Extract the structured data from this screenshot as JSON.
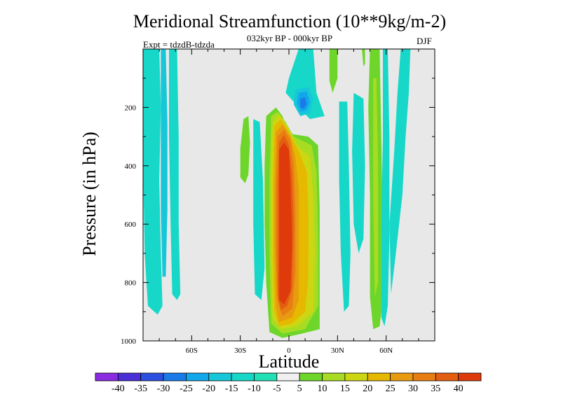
{
  "chart_data": {
    "type": "heatmap",
    "title": "Meridional Streamfunction (10**9kg/m-2)",
    "subtitle": "032kyr BP - 000kyr BP",
    "experiment": "Expt = tdzdB-tdzda",
    "season": "DJF",
    "xlabel": "Latitude",
    "ylabel": "Pressure (in hPa)",
    "xlim": [
      -90,
      90
    ],
    "ylim": [
      1000,
      0
    ],
    "x_ticks": [
      {
        "value": -60,
        "label": "60S"
      },
      {
        "value": -30,
        "label": "30S"
      },
      {
        "value": 0,
        "label": "0"
      },
      {
        "value": 30,
        "label": "30N"
      },
      {
        "value": 60,
        "label": "60N"
      }
    ],
    "y_ticks": [
      {
        "value": 200,
        "label": "200"
      },
      {
        "value": 400,
        "label": "400"
      },
      {
        "value": 600,
        "label": "600"
      },
      {
        "value": 800,
        "label": "800"
      },
      {
        "value": 1000,
        "label": "1000"
      }
    ],
    "background_color": "#e8e8e8",
    "colorbar": {
      "colors": [
        "#8b2be2",
        "#4b2fd6",
        "#2b4fe0",
        "#1a7ae8",
        "#12a7ea",
        "#16c7d9",
        "#17d8c8",
        "#20e0b4",
        "#f0f0f0",
        "#6ed62a",
        "#a8dc22",
        "#cdd612",
        "#e6b800",
        "#e89a10",
        "#e87d12",
        "#e45e10",
        "#de3a0c"
      ],
      "labels": [
        "-40",
        "-35",
        "-30",
        "-25",
        "-20",
        "-15",
        "-10",
        "-5",
        "5",
        "10",
        "15",
        "20",
        "25",
        "30",
        "35",
        "40"
      ]
    },
    "contours": [
      {
        "name": "sh-band-a",
        "level": -5,
        "color": "#17d8c8",
        "points": [
          [
            -90,
            0
          ],
          [
            -80,
            0
          ],
          [
            -79,
            200
          ],
          [
            -80,
            450
          ],
          [
            -79,
            700
          ],
          [
            -78,
            880
          ],
          [
            -81,
            910
          ],
          [
            -87,
            880
          ],
          [
            -89,
            700
          ],
          [
            -90,
            400
          ]
        ]
      },
      {
        "name": "sh-band-b",
        "level": -5,
        "color": "#17d8c8",
        "points": [
          [
            -74,
            0
          ],
          [
            -69,
            0
          ],
          [
            -68,
            300
          ],
          [
            -68,
            600
          ],
          [
            -67,
            840
          ],
          [
            -69,
            860
          ],
          [
            -72,
            840
          ],
          [
            -73,
            600
          ],
          [
            -74,
            300
          ]
        ]
      },
      {
        "name": "sh-band-c",
        "level": -10,
        "color": "#16c7d9",
        "points": [
          [
            -79,
            0
          ],
          [
            -76,
            0
          ],
          [
            -75,
            250
          ],
          [
            -75,
            550
          ],
          [
            -76,
            780
          ],
          [
            -78,
            780
          ],
          [
            -79,
            550
          ]
        ]
      },
      {
        "name": "green-sliver-s",
        "level": 5,
        "color": "#6ed62a",
        "points": [
          [
            -28,
            240
          ],
          [
            -25,
            230
          ],
          [
            -24,
            320
          ],
          [
            -25,
            430
          ],
          [
            -27,
            460
          ],
          [
            -30,
            440
          ],
          [
            -30,
            340
          ]
        ]
      },
      {
        "name": "cyan-sliver-s",
        "level": -5,
        "color": "#17d8c8",
        "points": [
          [
            -22,
            240
          ],
          [
            -18,
            250
          ],
          [
            -16,
            450
          ],
          [
            -15,
            750
          ],
          [
            -17,
            860
          ],
          [
            -21,
            840
          ],
          [
            -22,
            600
          ],
          [
            -22,
            400
          ]
        ]
      },
      {
        "name": "cyan-cap",
        "level": -5,
        "color": "#17d8c8",
        "points": [
          [
            6,
            0
          ],
          [
            15,
            0
          ],
          [
            17,
            150
          ],
          [
            22,
            230
          ],
          [
            13,
            240
          ],
          [
            6,
            200
          ],
          [
            -2,
            150
          ],
          [
            0,
            100
          ]
        ]
      },
      {
        "name": "cyan-core-1",
        "level": -10,
        "color": "#16c7d9",
        "points": [
          [
            4,
            140
          ],
          [
            12,
            130
          ],
          [
            15,
            170
          ],
          [
            13,
            220
          ],
          [
            7,
            230
          ],
          [
            3,
            190
          ]
        ]
      },
      {
        "name": "cyan-core-2",
        "level": -15,
        "color": "#12a7ea",
        "points": [
          [
            6,
            150
          ],
          [
            11,
            145
          ],
          [
            13,
            180
          ],
          [
            11,
            210
          ],
          [
            7,
            215
          ],
          [
            5,
            185
          ]
        ]
      },
      {
        "name": "cyan-core-3",
        "level": -20,
        "color": "#1a7ae8",
        "points": [
          [
            7,
            170
          ],
          [
            10,
            165
          ],
          [
            11,
            190
          ],
          [
            9,
            205
          ],
          [
            7,
            200
          ]
        ]
      },
      {
        "name": "green-cap-n",
        "level": 5,
        "color": "#6ed62a",
        "points": [
          [
            25,
            0
          ],
          [
            30,
            0
          ],
          [
            30,
            100
          ],
          [
            27,
            150
          ],
          [
            25,
            110
          ]
        ]
      },
      {
        "name": "cyan-sliver-n1",
        "level": -5,
        "color": "#17d8c8",
        "points": [
          [
            31,
            180
          ],
          [
            36,
            180
          ],
          [
            37,
            400
          ],
          [
            38,
            700
          ],
          [
            37,
            880
          ],
          [
            34,
            900
          ],
          [
            32,
            700
          ],
          [
            31,
            450
          ]
        ]
      },
      {
        "name": "cyan-sliver-n2",
        "level": -5,
        "color": "#17d8c8",
        "points": [
          [
            40,
            150
          ],
          [
            46,
            170
          ],
          [
            47,
            400
          ],
          [
            46,
            650
          ],
          [
            43,
            700
          ],
          [
            40,
            600
          ],
          [
            39,
            350
          ]
        ]
      },
      {
        "name": "green-n1",
        "level": 5,
        "color": "#6ed62a",
        "points": [
          [
            45,
            0
          ],
          [
            47,
            0
          ],
          [
            47,
            50
          ],
          [
            46,
            60
          ]
        ]
      },
      {
        "name": "green-n2",
        "level": 5,
        "color": "#6ed62a",
        "points": [
          [
            50,
            0
          ],
          [
            56,
            0
          ],
          [
            57,
            300
          ],
          [
            58,
            600
          ],
          [
            57,
            900
          ],
          [
            56,
            950
          ],
          [
            52,
            960
          ],
          [
            50,
            850
          ],
          [
            50,
            500
          ],
          [
            49,
            200
          ]
        ]
      },
      {
        "name": "green-n2-inner",
        "level": 10,
        "color": "#a8dc22",
        "points": [
          [
            52,
            100
          ],
          [
            54,
            100
          ],
          [
            55,
            400
          ],
          [
            55,
            800
          ],
          [
            53,
            850
          ],
          [
            52,
            500
          ]
        ]
      },
      {
        "name": "cyan-n3",
        "level": -5,
        "color": "#17d8c8",
        "points": [
          [
            58,
            0
          ],
          [
            61,
            0
          ],
          [
            62,
            300
          ],
          [
            62,
            650
          ],
          [
            61,
            880
          ],
          [
            59,
            950
          ],
          [
            57,
            920
          ],
          [
            57,
            600
          ],
          [
            58,
            300
          ]
        ]
      },
      {
        "name": "cyan-n4",
        "level": -5,
        "color": "#17d8c8",
        "points": [
          [
            69,
            0
          ],
          [
            75,
            0
          ],
          [
            74,
            150
          ],
          [
            72,
            300
          ],
          [
            70,
            500
          ],
          [
            66,
            700
          ],
          [
            63,
            840
          ],
          [
            62,
            600
          ],
          [
            65,
            350
          ],
          [
            67,
            150
          ]
        ]
      },
      {
        "name": "tropical-cell",
        "level": 5,
        "color": "#6ed62a",
        "points": [
          [
            -14,
            230
          ],
          [
            -8,
            200
          ],
          [
            -4,
            230
          ],
          [
            0,
            290
          ],
          [
            12,
            300
          ],
          [
            18,
            330
          ],
          [
            19,
            550
          ],
          [
            19,
            780
          ],
          [
            19,
            960
          ],
          [
            8,
            975
          ],
          [
            -4,
            990
          ],
          [
            -12,
            970
          ],
          [
            -14,
            800
          ],
          [
            -15,
            600
          ],
          [
            -15,
            400
          ]
        ]
      },
      {
        "name": "tropical-10",
        "level": 10,
        "color": "#a8dc22",
        "points": [
          [
            -11,
            230
          ],
          [
            -7,
            215
          ],
          [
            -2,
            250
          ],
          [
            3,
            300
          ],
          [
            14,
            330
          ],
          [
            17,
            420
          ],
          [
            18,
            650
          ],
          [
            18,
            880
          ],
          [
            10,
            960
          ],
          [
            -4,
            975
          ],
          [
            -11,
            940
          ],
          [
            -12,
            700
          ],
          [
            -12,
            450
          ]
        ]
      },
      {
        "name": "tropical-15",
        "level": 15,
        "color": "#cdd612",
        "points": [
          [
            -10,
            250
          ],
          [
            -6,
            225
          ],
          [
            -1,
            265
          ],
          [
            5,
            330
          ],
          [
            13,
            370
          ],
          [
            15,
            500
          ],
          [
            16,
            700
          ],
          [
            15,
            900
          ],
          [
            5,
            950
          ],
          [
            -5,
            960
          ],
          [
            -10,
            920
          ],
          [
            -11,
            700
          ],
          [
            -11,
            450
          ]
        ]
      },
      {
        "name": "tropical-20",
        "level": 20,
        "color": "#e6b800",
        "points": [
          [
            -9,
            265
          ],
          [
            -5,
            240
          ],
          [
            0,
            285
          ],
          [
            6,
            350
          ],
          [
            11,
            420
          ],
          [
            12,
            560
          ],
          [
            12,
            780
          ],
          [
            10,
            900
          ],
          [
            2,
            940
          ],
          [
            -6,
            950
          ],
          [
            -9,
            900
          ],
          [
            -10,
            700
          ],
          [
            -10,
            460
          ]
        ]
      },
      {
        "name": "tropical-25",
        "level": 25,
        "color": "#e89a10",
        "points": [
          [
            -8,
            285
          ],
          [
            -4,
            258
          ],
          [
            1,
            300
          ],
          [
            4,
            370
          ],
          [
            6,
            480
          ],
          [
            6,
            680
          ],
          [
            6,
            860
          ],
          [
            2,
            920
          ],
          [
            -6,
            935
          ],
          [
            -8,
            880
          ],
          [
            -9,
            680
          ],
          [
            -9,
            470
          ]
        ]
      },
      {
        "name": "tropical-30",
        "level": 30,
        "color": "#e87d12",
        "points": [
          [
            -7,
            300
          ],
          [
            -3,
            275
          ],
          [
            1,
            315
          ],
          [
            3,
            400
          ],
          [
            4,
            560
          ],
          [
            4,
            760
          ],
          [
            2,
            890
          ],
          [
            -4,
            915
          ],
          [
            -7,
            860
          ],
          [
            -8,
            680
          ],
          [
            -8,
            480
          ]
        ]
      },
      {
        "name": "tropical-35",
        "level": 35,
        "color": "#e45e10",
        "points": [
          [
            -6,
            320
          ],
          [
            -3,
            295
          ],
          [
            0,
            330
          ],
          [
            2,
            430
          ],
          [
            3,
            600
          ],
          [
            2,
            820
          ],
          [
            -1,
            880
          ],
          [
            -5,
            895
          ],
          [
            -7,
            840
          ],
          [
            -7,
            650
          ],
          [
            -7,
            480
          ]
        ]
      },
      {
        "name": "tropical-40",
        "level": 40,
        "color": "#de3a0c",
        "points": [
          [
            -6,
            345
          ],
          [
            -3,
            320
          ],
          [
            0,
            345
          ],
          [
            1,
            460
          ],
          [
            2,
            650
          ],
          [
            1,
            830
          ],
          [
            -3,
            875
          ],
          [
            -6,
            860
          ],
          [
            -6,
            700
          ],
          [
            -6,
            500
          ]
        ]
      }
    ]
  }
}
